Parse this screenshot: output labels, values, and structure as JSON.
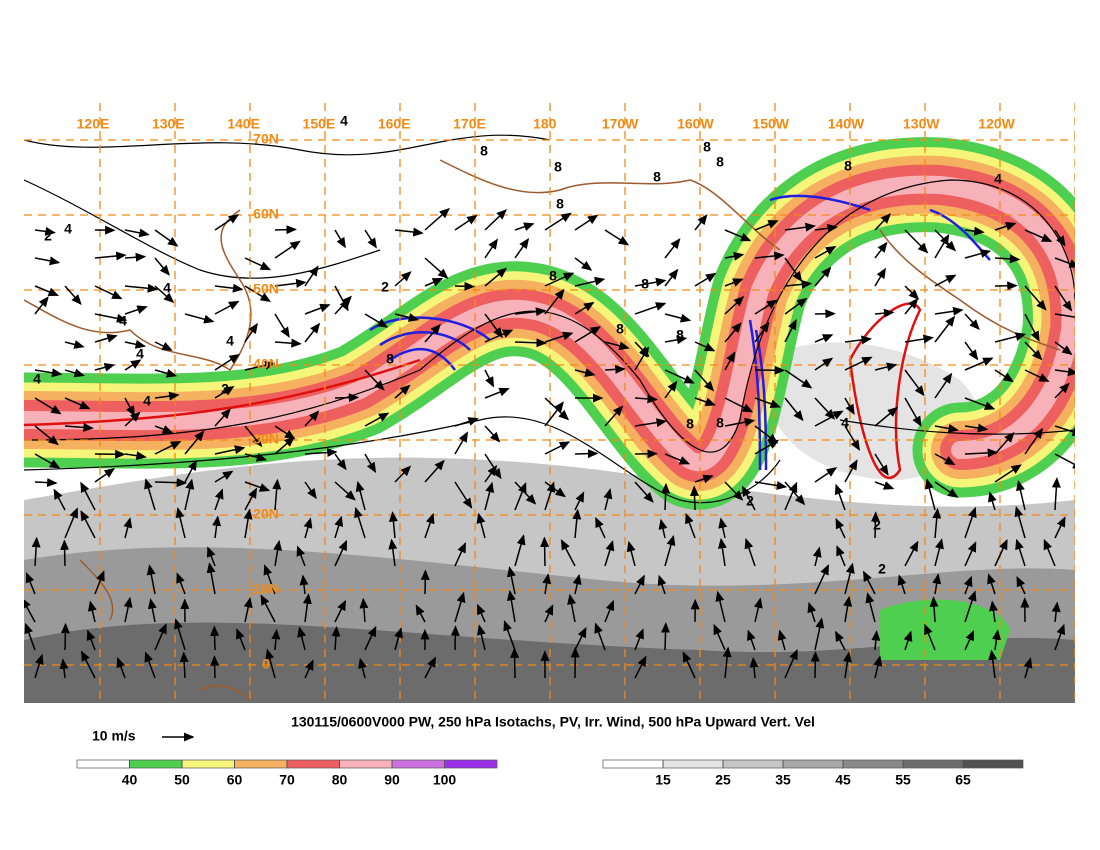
{
  "map": {
    "caption": "130115/0600V000 PW, 250 hPa Isotachs, PV, Irr. Wind, 500 hPa Upward Vert. Vel",
    "wind_scale_label": "10 m/s",
    "lon_labels": [
      "120E",
      "130E",
      "140E",
      "150E",
      "160E",
      "170E",
      "180",
      "170W",
      "160W",
      "150W",
      "140W",
      "130W",
      "120W"
    ],
    "lat_labels": [
      "70N",
      "60N",
      "50N",
      "40N",
      "30N",
      "20N",
      "10N",
      "0"
    ],
    "contour_labels": [
      "4",
      "8",
      "8",
      "8",
      "8",
      "8",
      "8",
      "4",
      "4",
      "4",
      "4",
      "4",
      "4",
      "4",
      "8",
      "8",
      "8",
      "8",
      "8",
      "8",
      "4",
      "4",
      "2",
      "2",
      "2",
      "2",
      "2",
      "2",
      "8",
      "8"
    ],
    "isotach_colorbar": {
      "ticks": [
        40,
        50,
        60,
        70,
        80,
        90,
        100
      ],
      "colors": [
        "#ffffff",
        "#4fcf4f",
        "#f5f57a",
        "#f5b060",
        "#ee5f5f",
        "#f7b2b9",
        "#cc6fe0",
        "#9b30e8"
      ]
    },
    "pw_colorbar": {
      "ticks": [
        15,
        25,
        35,
        45,
        55,
        65
      ],
      "colors": [
        "#ffffff",
        "#e4e4e4",
        "#c6c6c6",
        "#a8a8a8",
        "#8a8a8a",
        "#6c6c6c",
        "#505050"
      ]
    }
  }
}
